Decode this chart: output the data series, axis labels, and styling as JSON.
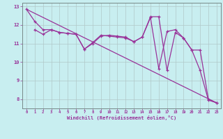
{
  "xlabel": "Windchill (Refroidissement éolien,°C)",
  "bg_color": "#c8eef0",
  "line_color": "#993399",
  "grid_color": "#b0c8c8",
  "xlim": [
    -0.5,
    23.5
  ],
  "ylim": [
    7.5,
    13.2
  ],
  "xticks": [
    0,
    1,
    2,
    3,
    4,
    5,
    6,
    7,
    8,
    9,
    10,
    11,
    12,
    13,
    14,
    15,
    16,
    17,
    18,
    19,
    20,
    21,
    22,
    23
  ],
  "yticks": [
    8,
    9,
    10,
    11,
    12,
    13
  ],
  "line1_x": [
    0,
    1,
    2,
    3,
    4,
    5,
    6,
    7,
    8,
    9,
    10,
    11,
    12,
    13,
    14,
    15,
    16,
    17,
    18,
    19,
    20,
    21,
    22,
    23
  ],
  "line1_y": [
    12.85,
    12.2,
    11.75,
    11.75,
    11.6,
    11.55,
    11.5,
    10.7,
    11.05,
    11.45,
    11.4,
    11.35,
    11.3,
    11.1,
    11.35,
    12.4,
    9.65,
    11.65,
    11.75,
    11.3,
    10.65,
    9.55,
    7.95,
    7.8
  ],
  "line2_x": [
    1,
    2,
    3,
    4,
    5,
    6,
    7,
    8,
    9,
    10,
    11,
    12,
    13,
    14,
    15,
    16,
    17,
    18,
    19,
    20,
    21,
    22,
    23
  ],
  "line2_y": [
    11.75,
    11.5,
    11.75,
    11.6,
    11.55,
    11.5,
    10.7,
    11.0,
    11.4,
    11.45,
    11.4,
    11.35,
    11.1,
    11.35,
    12.45,
    12.45,
    9.55,
    11.6,
    11.3,
    10.65,
    10.65,
    8.0,
    7.8
  ],
  "trend_x": [
    0,
    23
  ],
  "trend_y": [
    12.85,
    7.8
  ]
}
